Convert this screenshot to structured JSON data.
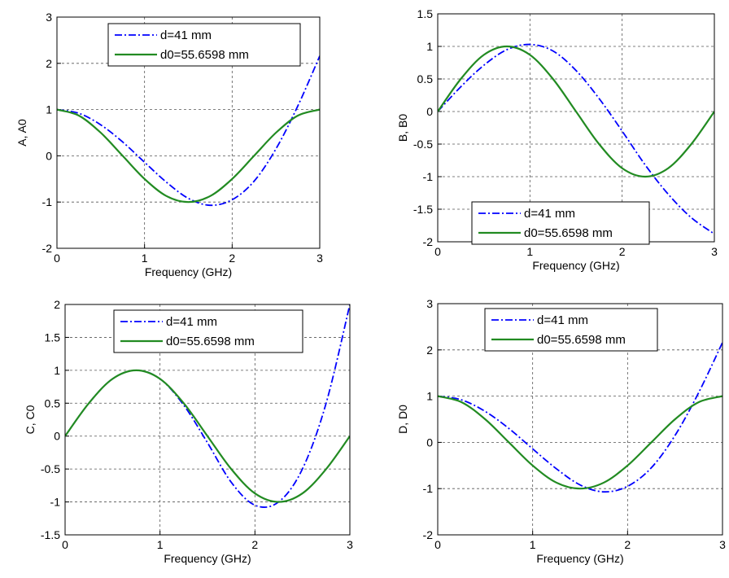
{
  "chart_data": [
    {
      "type": "line",
      "xlabel": "Frequency (GHz)",
      "ylabel": "A, A0",
      "xlim": [
        0,
        3
      ],
      "ylim": [
        -2,
        3
      ],
      "xticks": [
        "0",
        "1",
        "2",
        "3"
      ],
      "yticks": [
        "-2",
        "-1",
        "0",
        "1",
        "2",
        "3"
      ],
      "grid": true,
      "legend_position": "top-center",
      "series": [
        {
          "name": "d=41 mm",
          "style": "dash-dot",
          "color": "#0000ff",
          "x": [
            0,
            0.25,
            0.5,
            0.75,
            1,
            1.25,
            1.5,
            1.75,
            2,
            2.25,
            2.5,
            2.75,
            3
          ],
          "y": [
            1,
            0.92,
            0.67,
            0.3,
            -0.14,
            -0.57,
            -0.92,
            -1.07,
            -0.95,
            -0.55,
            0.15,
            1.08,
            2.16
          ]
        },
        {
          "name": "d0=55.6598 mm",
          "style": "solid",
          "color": "#228b22",
          "x": [
            0,
            0.25,
            0.5,
            0.75,
            1,
            1.25,
            1.5,
            1.75,
            2,
            2.25,
            2.5,
            2.75,
            3
          ],
          "y": [
            1,
            0.87,
            0.5,
            0,
            -0.5,
            -0.87,
            -1,
            -0.87,
            -0.5,
            0,
            0.5,
            0.87,
            1
          ]
        }
      ]
    },
    {
      "type": "line",
      "xlabel": "Frequency (GHz)",
      "ylabel": "B, B0",
      "xlim": [
        0,
        3
      ],
      "ylim": [
        -2,
        1.5
      ],
      "xticks": [
        "0",
        "1",
        "2",
        "3"
      ],
      "yticks": [
        "-2",
        "-1.5",
        "-1",
        "-0.5",
        "0",
        "0.5",
        "1",
        "1.5"
      ],
      "grid": true,
      "legend_position": "bottom-right",
      "series": [
        {
          "name": "d=41 mm",
          "style": "dash-dot",
          "color": "#0000ff",
          "x": [
            0,
            0.25,
            0.5,
            0.75,
            1,
            1.25,
            1.5,
            1.75,
            2,
            2.25,
            2.5,
            2.75,
            3
          ],
          "y": [
            0,
            0.38,
            0.71,
            0.95,
            1.03,
            0.93,
            0.63,
            0.2,
            -0.3,
            -0.82,
            -1.27,
            -1.63,
            -1.88
          ]
        },
        {
          "name": "d0=55.6598 mm",
          "style": "solid",
          "color": "#228b22",
          "x": [
            0,
            0.25,
            0.5,
            0.75,
            1,
            1.25,
            1.5,
            1.75,
            2,
            2.25,
            2.5,
            2.75,
            3
          ],
          "y": [
            0,
            0.5,
            0.87,
            1,
            0.87,
            0.5,
            0,
            -0.5,
            -0.87,
            -1,
            -0.87,
            -0.5,
            0
          ]
        }
      ]
    },
    {
      "type": "line",
      "xlabel": "Frequency (GHz)",
      "ylabel": "C, C0",
      "xlim": [
        0,
        3
      ],
      "ylim": [
        -1.5,
        2
      ],
      "xticks": [
        "0",
        "1",
        "2",
        "3"
      ],
      "yticks": [
        "-1.5",
        "-1",
        "-0.5",
        "0",
        "0.5",
        "1",
        "1.5",
        "2"
      ],
      "grid": true,
      "legend_position": "top-center",
      "series": [
        {
          "name": "d=41 mm",
          "style": "dash-dot",
          "color": "#0000ff",
          "x": [
            0,
            0.25,
            0.5,
            0.75,
            1,
            1.25,
            1.5,
            1.75,
            2,
            2.25,
            2.5,
            2.75,
            3
          ],
          "y": [
            0,
            0.5,
            0.87,
            1,
            0.87,
            0.47,
            -0.1,
            -0.7,
            -1.05,
            -1.0,
            -0.5,
            0.5,
            2.0
          ]
        },
        {
          "name": "d0=55.6598 mm",
          "style": "solid",
          "color": "#228b22",
          "x": [
            0,
            0.25,
            0.5,
            0.75,
            1,
            1.25,
            1.5,
            1.75,
            2,
            2.25,
            2.5,
            2.75,
            3
          ],
          "y": [
            0,
            0.5,
            0.87,
            1,
            0.87,
            0.5,
            0,
            -0.5,
            -0.87,
            -1,
            -0.87,
            -0.5,
            0
          ]
        }
      ]
    },
    {
      "type": "line",
      "xlabel": "Frequency (GHz)",
      "ylabel": "D, D0",
      "xlim": [
        0,
        3
      ],
      "ylim": [
        -2,
        3
      ],
      "xticks": [
        "0",
        "1",
        "2",
        "3"
      ],
      "yticks": [
        "-2",
        "-1",
        "0",
        "1",
        "2",
        "3"
      ],
      "grid": true,
      "legend_position": "top-center",
      "series": [
        {
          "name": "d=41 mm",
          "style": "dash-dot",
          "color": "#0000ff",
          "x": [
            0,
            0.25,
            0.5,
            0.75,
            1,
            1.25,
            1.5,
            1.75,
            2,
            2.25,
            2.5,
            2.75,
            3
          ],
          "y": [
            1,
            0.92,
            0.67,
            0.3,
            -0.14,
            -0.57,
            -0.92,
            -1.07,
            -0.95,
            -0.55,
            0.15,
            1.08,
            2.16
          ]
        },
        {
          "name": "d0=55.6598 mm",
          "style": "solid",
          "color": "#228b22",
          "x": [
            0,
            0.25,
            0.5,
            0.75,
            1,
            1.25,
            1.5,
            1.75,
            2,
            2.25,
            2.5,
            2.75,
            3
          ],
          "y": [
            1,
            0.87,
            0.5,
            0,
            -0.5,
            -0.87,
            -1,
            -0.87,
            -0.5,
            0,
            0.5,
            0.87,
            1
          ]
        }
      ]
    }
  ]
}
